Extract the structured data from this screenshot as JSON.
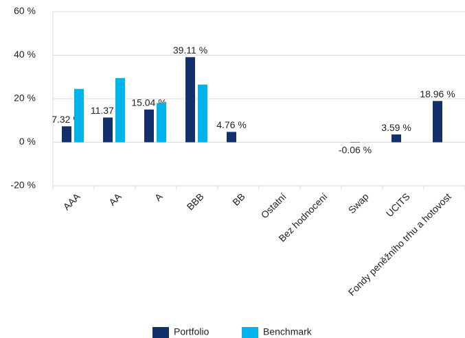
{
  "chart_data": {
    "type": "bar",
    "categories": [
      "AAA",
      "AA",
      "A",
      "BBB",
      "BB",
      "Ostatní",
      "Bez hodnocení",
      "Swap",
      "UCITS",
      "Fondy peněžního trhu a hotovost"
    ],
    "series": [
      {
        "name": "Portfolio",
        "color": "#14306b",
        "values": [
          7.32,
          11.37,
          15.04,
          39.11,
          4.76,
          null,
          null,
          -0.06,
          3.59,
          18.96
        ],
        "value_labels": [
          "7.32 %",
          "11.37 %",
          "15.04 %",
          "39.11 %",
          "4.76 %",
          null,
          null,
          "-0.06 %",
          "3.59 %",
          "18.96 %"
        ]
      },
      {
        "name": "Benchmark",
        "color": "#00b4eb",
        "values": [
          24.5,
          29.5,
          18,
          26.5,
          null,
          null,
          null,
          null,
          null,
          null
        ]
      }
    ],
    "ylim": [
      -20,
      60
    ],
    "yticks": [
      {
        "value": -20,
        "label": "-20 %"
      },
      {
        "value": 0,
        "label": "0 %"
      },
      {
        "value": 20,
        "label": "20 %"
      },
      {
        "value": 40,
        "label": "40 %"
      },
      {
        "value": 60,
        "label": "60 %"
      }
    ],
    "grid": true,
    "legend": "bottom"
  }
}
